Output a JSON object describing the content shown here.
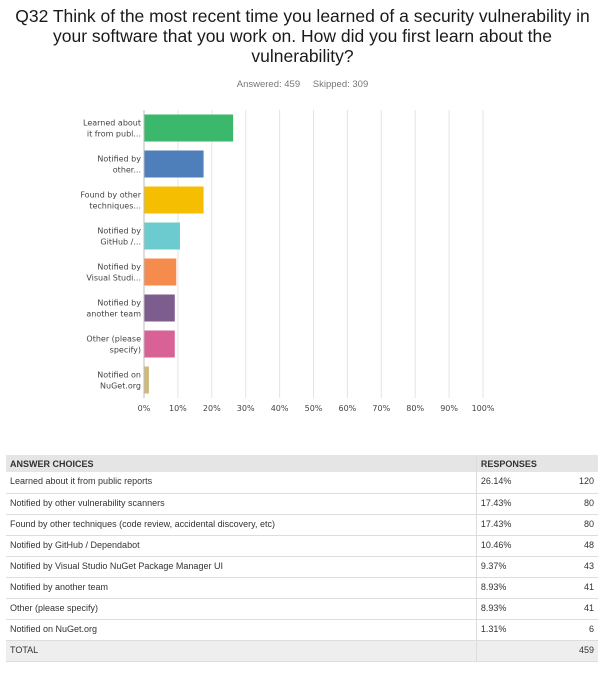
{
  "question": {
    "line1": "Q32 Think of the most recent time you learned of a security vulnerability in",
    "line2": "your software that you work on. How did you first learn about the",
    "line3": "vulnerability?"
  },
  "stats": {
    "answered": "Answered: 459",
    "skipped": "Skipped: 309"
  },
  "chart_data": {
    "type": "bar",
    "orientation": "horizontal",
    "categories": [
      [
        "Learned about",
        "it from publ..."
      ],
      [
        "Notified by",
        "other..."
      ],
      [
        "Found by other",
        "techniques..."
      ],
      [
        "Notified by",
        "GitHub /..."
      ],
      [
        "Notified by",
        "Visual Studi..."
      ],
      [
        "Notified by",
        "another team"
      ],
      [
        "Other (please",
        "specify)"
      ],
      [
        "Notified on",
        "NuGet.org"
      ]
    ],
    "values": [
      26.14,
      17.43,
      17.43,
      10.46,
      9.37,
      8.93,
      8.93,
      1.31
    ],
    "colors": [
      "#3cb86c",
      "#4f7fbb",
      "#f5be00",
      "#6ccbcf",
      "#f58b4c",
      "#7d5c8e",
      "#d86195",
      "#cfb97c"
    ],
    "xticks": [
      "0%",
      "10%",
      "20%",
      "30%",
      "40%",
      "50%",
      "60%",
      "70%",
      "80%",
      "90%",
      "100%"
    ],
    "xlim": [
      0,
      100
    ],
    "grid": true
  },
  "table": {
    "headers": {
      "choice": "ANSWER CHOICES",
      "responses": "RESPONSES"
    },
    "rows": [
      {
        "choice": "Learned about it from public reports",
        "pct": "26.14%",
        "count": "120"
      },
      {
        "choice": "Notified by other vulnerability scanners",
        "pct": "17.43%",
        "count": "80"
      },
      {
        "choice": "Found by other techniques (code review, accidental discovery, etc)",
        "pct": "17.43%",
        "count": "80"
      },
      {
        "choice": "Notified by GitHub / Dependabot",
        "pct": "10.46%",
        "count": "48"
      },
      {
        "choice": "Notified by Visual Studio NuGet Package Manager UI",
        "pct": "9.37%",
        "count": "43"
      },
      {
        "choice": "Notified by another team",
        "pct": "8.93%",
        "count": "41"
      },
      {
        "choice": "Other (please specify)",
        "pct": "8.93%",
        "count": "41"
      },
      {
        "choice": "Notified on NuGet.org",
        "pct": "1.31%",
        "count": "6"
      }
    ],
    "total": {
      "label": "TOTAL",
      "count": "459"
    }
  }
}
